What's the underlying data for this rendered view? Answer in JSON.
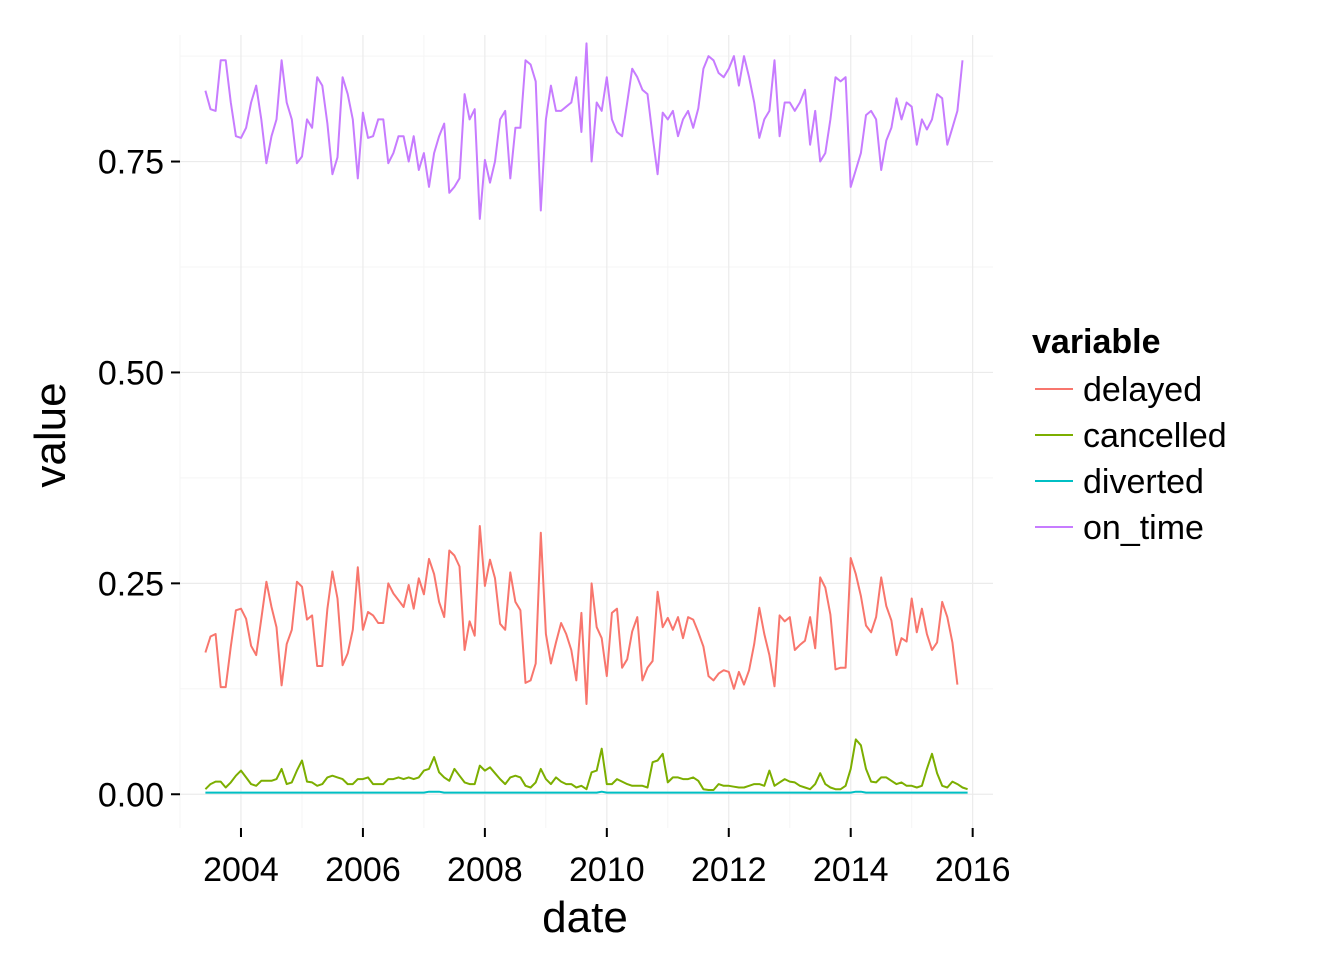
{
  "chart_data": {
    "type": "line",
    "xlabel": "date",
    "ylabel": "value",
    "x_ticks": [
      "2004",
      "2006",
      "2008",
      "2010",
      "2012",
      "2014",
      "2016"
    ],
    "y_ticks": [
      "0.00",
      "0.25",
      "0.50",
      "0.75"
    ],
    "xlim": [
      "2003-01",
      "2016-05"
    ],
    "ylim": [
      -0.04,
      0.9
    ],
    "grid": true,
    "legend": {
      "title": "variable",
      "position": "right"
    },
    "series": [
      {
        "name": "delayed",
        "color": "#F8766D",
        "values": [
          0.168,
          0.187,
          0.19,
          0.127,
          0.127,
          0.175,
          0.218,
          0.22,
          0.208,
          0.176,
          0.165,
          0.208,
          0.252,
          0.222,
          0.198,
          0.129,
          0.178,
          0.195,
          0.252,
          0.246,
          0.207,
          0.212,
          0.152,
          0.152,
          0.22,
          0.264,
          0.232,
          0.153,
          0.167,
          0.195,
          0.269,
          0.195,
          0.216,
          0.212,
          0.203,
          0.203,
          0.25,
          0.238,
          0.23,
          0.222,
          0.248,
          0.22,
          0.256,
          0.237,
          0.279,
          0.261,
          0.228,
          0.21,
          0.289,
          0.283,
          0.27,
          0.171,
          0.205,
          0.188,
          0.318,
          0.247,
          0.278,
          0.256,
          0.202,
          0.195,
          0.263,
          0.228,
          0.218,
          0.132,
          0.135,
          0.155,
          0.31,
          0.19,
          0.155,
          0.18,
          0.203,
          0.19,
          0.171,
          0.135,
          0.215,
          0.107,
          0.25,
          0.198,
          0.185,
          0.14,
          0.215,
          0.22,
          0.15,
          0.16,
          0.193,
          0.21,
          0.135,
          0.15,
          0.158,
          0.24,
          0.198,
          0.209,
          0.195,
          0.21,
          0.185,
          0.21,
          0.207,
          0.192,
          0.175,
          0.14,
          0.135,
          0.143,
          0.147,
          0.145,
          0.125,
          0.145,
          0.13,
          0.147,
          0.178,
          0.221,
          0.19,
          0.165,
          0.128,
          0.212,
          0.205,
          0.21,
          0.171,
          0.177,
          0.182,
          0.21,
          0.173,
          0.257,
          0.245,
          0.213,
          0.148,
          0.15,
          0.15,
          0.28,
          0.261,
          0.235,
          0.2,
          0.192,
          0.21,
          0.257,
          0.223,
          0.206,
          0.165,
          0.185,
          0.181,
          0.232,
          0.192,
          0.22,
          0.19,
          0.171,
          0.18,
          0.228,
          0.21,
          0.18,
          0.13
        ]
      },
      {
        "name": "cancelled",
        "color": "#7CAE00",
        "values": [
          0.006,
          0.012,
          0.015,
          0.015,
          0.008,
          0.014,
          0.022,
          0.028,
          0.02,
          0.012,
          0.01,
          0.016,
          0.016,
          0.016,
          0.018,
          0.03,
          0.012,
          0.014,
          0.028,
          0.04,
          0.015,
          0.014,
          0.01,
          0.012,
          0.02,
          0.022,
          0.02,
          0.018,
          0.012,
          0.012,
          0.018,
          0.018,
          0.02,
          0.012,
          0.012,
          0.012,
          0.018,
          0.018,
          0.02,
          0.018,
          0.02,
          0.018,
          0.02,
          0.028,
          0.03,
          0.044,
          0.026,
          0.02,
          0.016,
          0.03,
          0.022,
          0.014,
          0.012,
          0.012,
          0.034,
          0.028,
          0.032,
          0.025,
          0.018,
          0.012,
          0.02,
          0.022,
          0.02,
          0.01,
          0.008,
          0.014,
          0.03,
          0.018,
          0.012,
          0.02,
          0.015,
          0.012,
          0.012,
          0.008,
          0.01,
          0.006,
          0.026,
          0.028,
          0.054,
          0.012,
          0.012,
          0.018,
          0.015,
          0.012,
          0.01,
          0.01,
          0.01,
          0.008,
          0.038,
          0.04,
          0.048,
          0.014,
          0.02,
          0.02,
          0.018,
          0.018,
          0.02,
          0.016,
          0.006,
          0.005,
          0.005,
          0.012,
          0.01,
          0.01,
          0.009,
          0.008,
          0.008,
          0.01,
          0.012,
          0.012,
          0.01,
          0.028,
          0.01,
          0.014,
          0.018,
          0.015,
          0.014,
          0.01,
          0.008,
          0.006,
          0.012,
          0.025,
          0.012,
          0.008,
          0.006,
          0.006,
          0.01,
          0.03,
          0.065,
          0.058,
          0.03,
          0.015,
          0.014,
          0.02,
          0.02,
          0.016,
          0.012,
          0.014,
          0.01,
          0.01,
          0.008,
          0.01,
          0.03,
          0.048,
          0.025,
          0.01,
          0.008,
          0.015,
          0.012,
          0.008,
          0.006
        ]
      },
      {
        "name": "diverted",
        "color": "#00BFC4",
        "values": [
          0.002,
          0.002,
          0.002,
          0.002,
          0.002,
          0.002,
          0.002,
          0.002,
          0.002,
          0.002,
          0.002,
          0.002,
          0.002,
          0.002,
          0.002,
          0.002,
          0.002,
          0.002,
          0.002,
          0.002,
          0.002,
          0.002,
          0.002,
          0.002,
          0.002,
          0.002,
          0.002,
          0.002,
          0.002,
          0.002,
          0.002,
          0.002,
          0.002,
          0.002,
          0.002,
          0.002,
          0.002,
          0.002,
          0.002,
          0.002,
          0.002,
          0.002,
          0.002,
          0.002,
          0.003,
          0.003,
          0.003,
          0.002,
          0.002,
          0.002,
          0.002,
          0.002,
          0.002,
          0.002,
          0.002,
          0.002,
          0.002,
          0.002,
          0.002,
          0.002,
          0.002,
          0.002,
          0.002,
          0.002,
          0.002,
          0.002,
          0.002,
          0.002,
          0.002,
          0.002,
          0.002,
          0.002,
          0.002,
          0.002,
          0.002,
          0.002,
          0.002,
          0.002,
          0.003,
          0.002,
          0.002,
          0.002,
          0.002,
          0.002,
          0.002,
          0.002,
          0.002,
          0.002,
          0.002,
          0.002,
          0.002,
          0.002,
          0.002,
          0.002,
          0.002,
          0.002,
          0.002,
          0.002,
          0.002,
          0.002,
          0.002,
          0.002,
          0.002,
          0.002,
          0.002,
          0.002,
          0.002,
          0.002,
          0.002,
          0.002,
          0.002,
          0.002,
          0.002,
          0.002,
          0.002,
          0.002,
          0.002,
          0.002,
          0.002,
          0.002,
          0.002,
          0.002,
          0.002,
          0.002,
          0.002,
          0.002,
          0.002,
          0.002,
          0.003,
          0.003,
          0.002,
          0.002,
          0.002,
          0.002,
          0.002,
          0.002,
          0.002,
          0.002,
          0.002,
          0.002,
          0.002,
          0.002,
          0.002,
          0.002,
          0.002,
          0.002,
          0.002,
          0.002,
          0.002,
          0.002,
          0.002
        ]
      },
      {
        "name": "on_time",
        "color": "#C77CFF",
        "values": [
          0.834,
          0.812,
          0.81,
          0.87,
          0.87,
          0.82,
          0.78,
          0.778,
          0.79,
          0.82,
          0.84,
          0.8,
          0.748,
          0.78,
          0.8,
          0.87,
          0.82,
          0.8,
          0.748,
          0.756,
          0.8,
          0.79,
          0.85,
          0.84,
          0.795,
          0.735,
          0.755,
          0.85,
          0.83,
          0.8,
          0.73,
          0.808,
          0.778,
          0.78,
          0.8,
          0.8,
          0.748,
          0.76,
          0.78,
          0.78,
          0.75,
          0.78,
          0.74,
          0.76,
          0.72,
          0.76,
          0.78,
          0.795,
          0.713,
          0.72,
          0.73,
          0.83,
          0.8,
          0.812,
          0.682,
          0.752,
          0.725,
          0.75,
          0.8,
          0.81,
          0.73,
          0.79,
          0.79,
          0.87,
          0.865,
          0.845,
          0.692,
          0.8,
          0.84,
          0.81,
          0.81,
          0.815,
          0.82,
          0.85,
          0.785,
          0.89,
          0.75,
          0.82,
          0.81,
          0.85,
          0.8,
          0.785,
          0.78,
          0.82,
          0.86,
          0.85,
          0.835,
          0.83,
          0.78,
          0.735,
          0.808,
          0.8,
          0.81,
          0.78,
          0.8,
          0.81,
          0.79,
          0.813,
          0.86,
          0.875,
          0.87,
          0.855,
          0.85,
          0.86,
          0.875,
          0.84,
          0.875,
          0.85,
          0.82,
          0.778,
          0.8,
          0.81,
          0.87,
          0.78,
          0.82,
          0.82,
          0.81,
          0.82,
          0.835,
          0.77,
          0.81,
          0.75,
          0.76,
          0.8,
          0.85,
          0.845,
          0.85,
          0.72,
          0.74,
          0.76,
          0.805,
          0.81,
          0.8,
          0.74,
          0.775,
          0.79,
          0.825,
          0.8,
          0.82,
          0.815,
          0.77,
          0.8,
          0.788,
          0.8,
          0.83,
          0.825,
          0.77,
          0.79,
          0.81,
          0.87
        ]
      }
    ]
  }
}
